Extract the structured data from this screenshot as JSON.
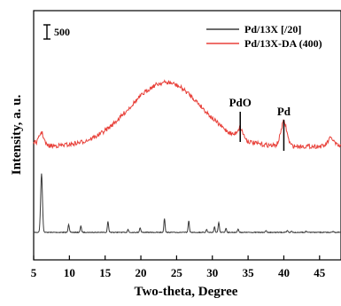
{
  "chart_data": {
    "type": "line",
    "xlabel": "Two-theta, Degree",
    "ylabel": "Intensity, a. u.",
    "xlim": [
      5,
      50
    ],
    "x_ticks": [
      "5",
      "10",
      "15",
      "20",
      "25",
      "30",
      "35",
      "40",
      "45",
      "5"
    ],
    "scale_bar_label": "500",
    "grid": false,
    "legend_position": "top-right",
    "series": [
      {
        "name": "Pd/13X [/20]",
        "color": "#3a3a3a",
        "description_peaks": [
          {
            "x": 6.1,
            "height": 1.0
          },
          {
            "x": 9.9,
            "height": 0.14
          },
          {
            "x": 11.6,
            "height": 0.11
          },
          {
            "x": 15.4,
            "height": 0.19
          },
          {
            "x": 18.2,
            "height": 0.05
          },
          {
            "x": 19.9,
            "height": 0.08
          },
          {
            "x": 23.3,
            "height": 0.24
          },
          {
            "x": 26.7,
            "height": 0.2
          },
          {
            "x": 29.2,
            "height": 0.05
          },
          {
            "x": 30.3,
            "height": 0.09
          },
          {
            "x": 30.9,
            "height": 0.17
          },
          {
            "x": 31.9,
            "height": 0.07
          },
          {
            "x": 33.6,
            "height": 0.06
          },
          {
            "x": 37.5,
            "height": 0.03
          },
          {
            "x": 40.5,
            "height": 0.03
          },
          {
            "x": 41.1,
            "height": 0.02
          },
          {
            "x": 43.1,
            "height": 0.02
          },
          {
            "x": 46.9,
            "height": 0.02
          }
        ]
      },
      {
        "name": "Pd/13X-DA (400)",
        "color": "#e8413a",
        "broad_hump_center": 23.5,
        "description_peaks": [
          {
            "x": 6.1,
            "height": 0.3
          },
          {
            "x": 33.9,
            "height": 0.25
          },
          {
            "x": 40.0,
            "height": 0.6
          },
          {
            "x": 46.6,
            "height": 0.2
          }
        ]
      }
    ],
    "annotations": [
      {
        "text": "PdO",
        "x": 33.9
      },
      {
        "text": "Pd",
        "x": 40.0
      }
    ]
  }
}
